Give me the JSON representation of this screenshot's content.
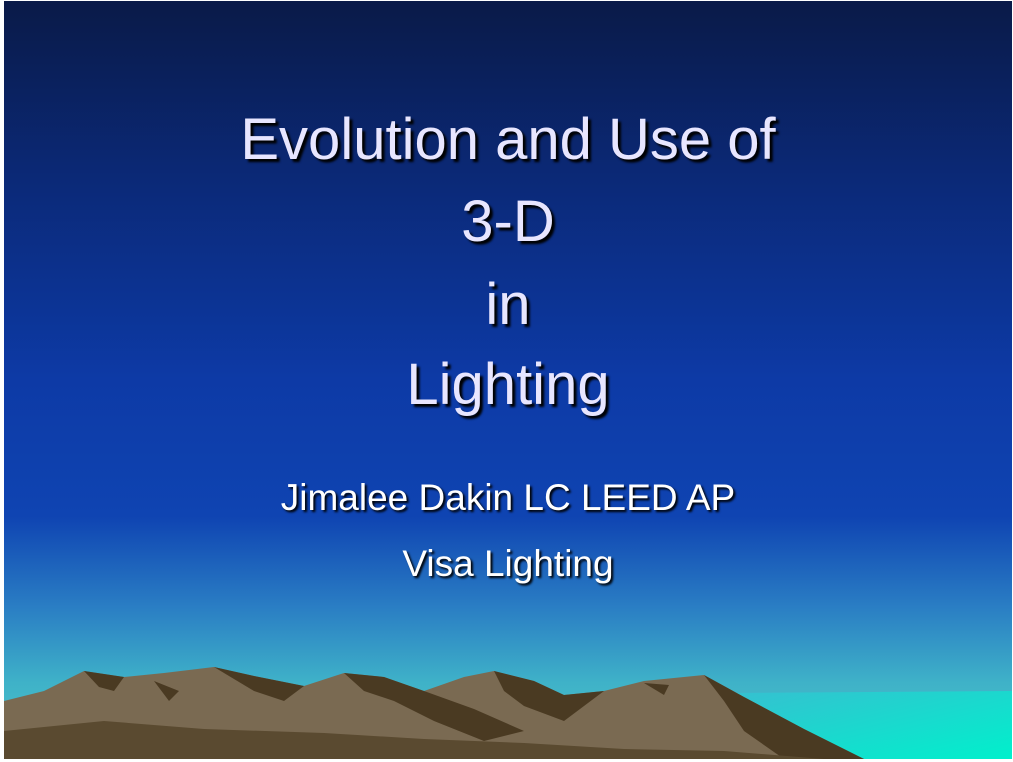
{
  "title": {
    "lines": [
      "Evolution and Use of",
      "3-D",
      "in",
      "Lighting"
    ]
  },
  "subtitle": {
    "lines": [
      "Jimalee Dakin LC LEED AP",
      "Visa Lighting"
    ]
  }
}
